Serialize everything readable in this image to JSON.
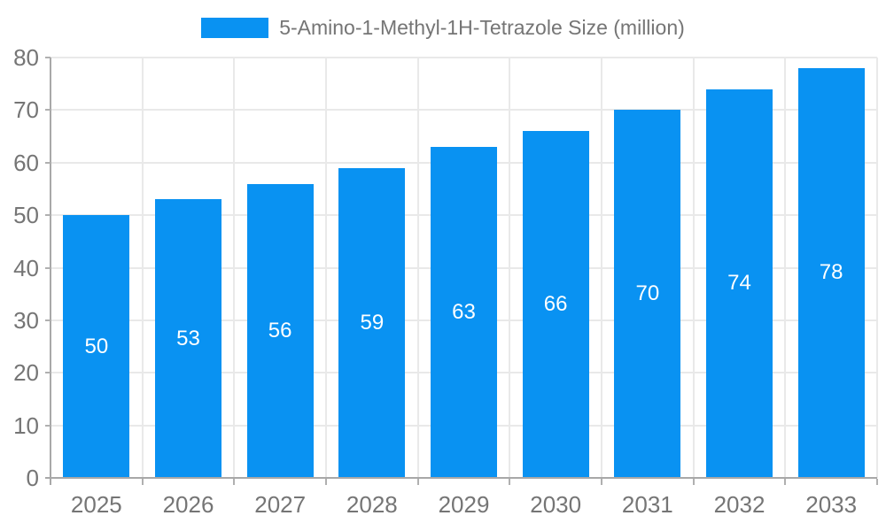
{
  "chart_data": {
    "type": "bar",
    "title": "5-Amino-1-Methyl-1H-Tetrazole Size (million)",
    "series_name": "5-Amino-1-Methyl-1H-Tetrazole Size (million)",
    "categories": [
      "2025",
      "2026",
      "2027",
      "2028",
      "2029",
      "2030",
      "2031",
      "2032",
      "2033"
    ],
    "values": [
      50,
      53,
      56,
      59,
      63,
      66,
      70,
      74,
      78
    ],
    "xlabel": "",
    "ylabel": "",
    "ylim": [
      0,
      80
    ],
    "yticks": [
      0,
      10,
      20,
      30,
      40,
      50,
      60,
      70,
      80
    ],
    "grid": true,
    "legend_position": "top",
    "colors": {
      "bar": "#0992f2",
      "value_label": "#ffffff",
      "grid": "#e9e9e9",
      "axis": "#a8a8a8",
      "tick": "#b0b0b0",
      "text": "#757575",
      "background": "#ffffff"
    }
  }
}
